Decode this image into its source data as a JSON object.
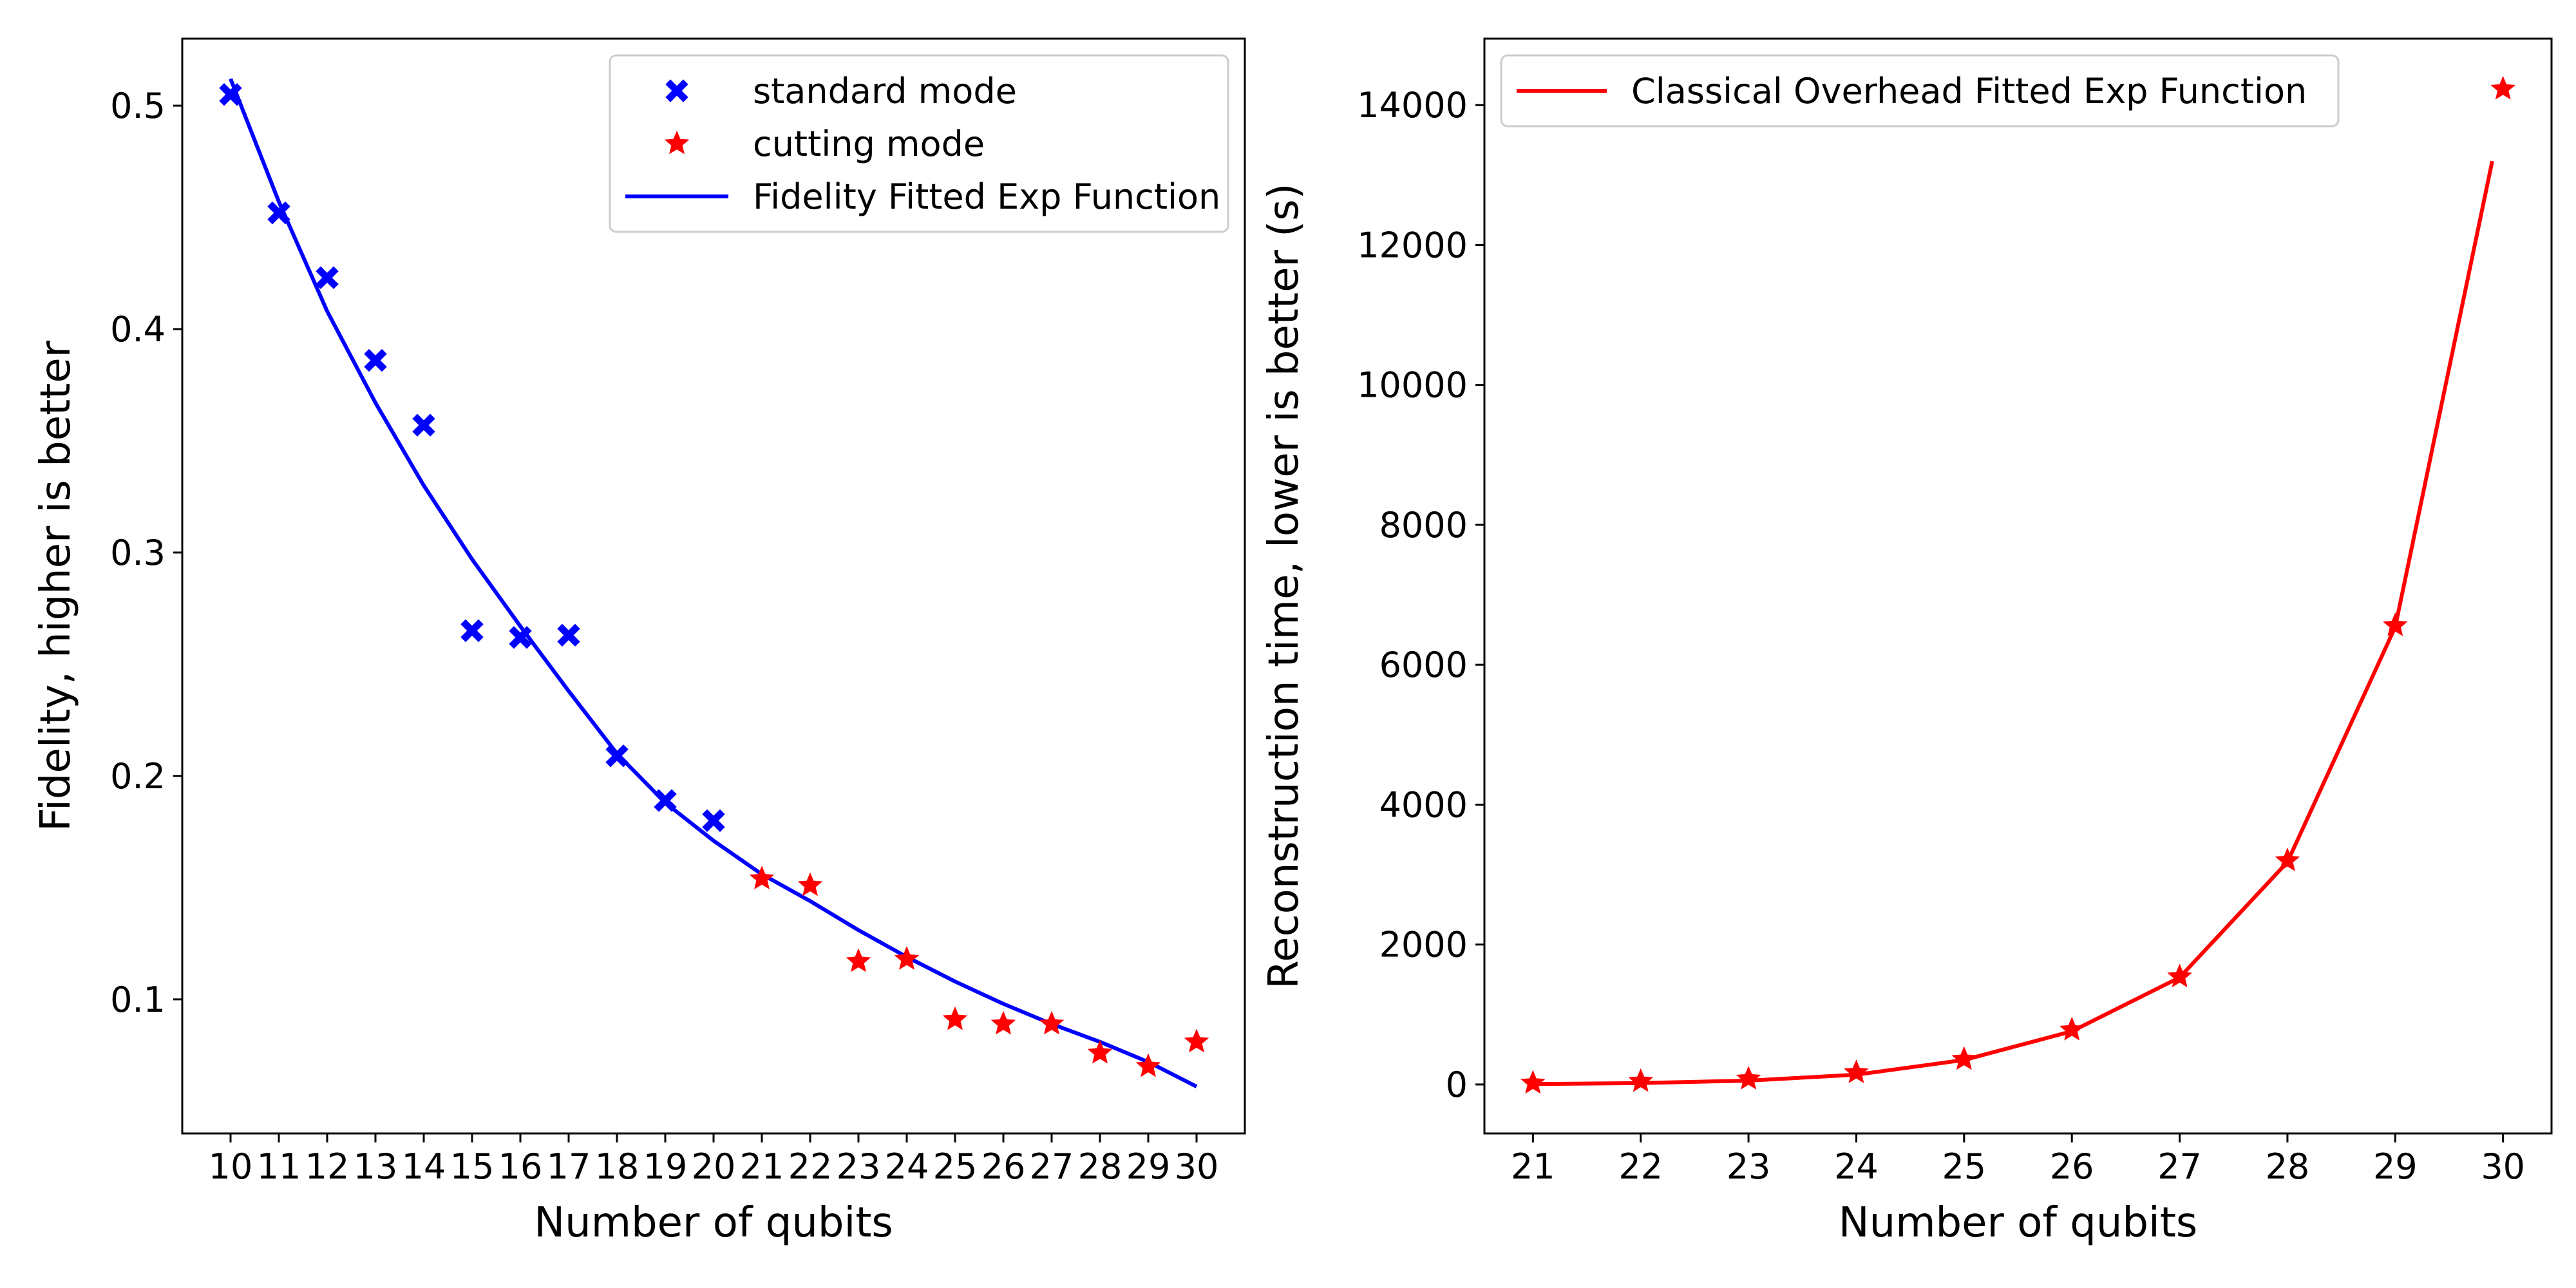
{
  "chart_data": [
    {
      "type": "scatter",
      "xlabel": "Number of qubits",
      "ylabel": "Fidelity, higher is better",
      "xlim": [
        9,
        31
      ],
      "ylim": [
        0.04,
        0.53
      ],
      "xticks": [
        10,
        11,
        12,
        13,
        14,
        15,
        16,
        17,
        18,
        19,
        20,
        21,
        22,
        23,
        24,
        25,
        26,
        27,
        28,
        29,
        30
      ],
      "yticks": [
        0.1,
        0.2,
        0.3,
        0.4,
        0.5
      ],
      "legend_position": "top-right",
      "grid": false,
      "series": [
        {
          "name": "standard mode",
          "kind": "marker",
          "marker": "x-filled",
          "color": "#0000ff",
          "x": [
            10,
            11,
            12,
            13,
            14,
            15,
            16,
            17,
            18,
            19,
            20
          ],
          "y": [
            0.505,
            0.452,
            0.423,
            0.386,
            0.357,
            0.265,
            0.262,
            0.263,
            0.209,
            0.189,
            0.18
          ]
        },
        {
          "name": "cutting mode",
          "kind": "marker",
          "marker": "star",
          "color": "#ff0000",
          "x": [
            21,
            22,
            23,
            24,
            25,
            26,
            27,
            28,
            29,
            30
          ],
          "y": [
            0.154,
            0.151,
            0.117,
            0.118,
            0.091,
            0.089,
            0.089,
            0.076,
            0.07,
            0.081
          ]
        },
        {
          "name": "Fidelity Fitted Exp Function",
          "kind": "line",
          "color": "#0000ff",
          "x": [
            10,
            11,
            12,
            13,
            14,
            15,
            16,
            17,
            18,
            19,
            20,
            21,
            22,
            23,
            24,
            25,
            26,
            27,
            28,
            29,
            30
          ],
          "y": [
            0.512,
            0.457,
            0.408,
            0.367,
            0.33,
            0.297,
            0.267,
            0.238,
            0.21,
            0.188,
            0.171,
            0.156,
            0.144,
            0.131,
            0.119,
            0.108,
            0.098,
            0.089,
            0.081,
            0.072,
            0.061
          ]
        }
      ]
    },
    {
      "type": "scatter",
      "xlabel": "Number of qubits",
      "ylabel": "Reconstruction time, lower is better (s)",
      "xlim": [
        20.55,
        30.45
      ],
      "ylim": [
        -700,
        14950
      ],
      "xticks": [
        21,
        22,
        23,
        24,
        25,
        26,
        27,
        28,
        29,
        30
      ],
      "yticks": [
        0,
        2000,
        4000,
        6000,
        8000,
        10000,
        12000,
        14000
      ],
      "legend_position": "top-left",
      "grid": false,
      "series": [
        {
          "name": "cutting mode",
          "kind": "marker",
          "marker": "star",
          "color": "#ff0000",
          "in_legend": false,
          "x": [
            21,
            22,
            23,
            24,
            25,
            26,
            27,
            28,
            29,
            30
          ],
          "y": [
            20,
            45,
            80,
            170,
            360,
            780,
            1540,
            3200,
            6560,
            14230
          ]
        },
        {
          "name": "Classical Overhead Fitted Exp Function",
          "kind": "line",
          "color": "#ff0000",
          "x": [
            21,
            22,
            23,
            24,
            25,
            26,
            27,
            28,
            29,
            29.9
          ],
          "y": [
            6,
            20,
            55,
            140,
            350,
            760,
            1530,
            3180,
            6540,
            13200
          ]
        }
      ]
    }
  ]
}
